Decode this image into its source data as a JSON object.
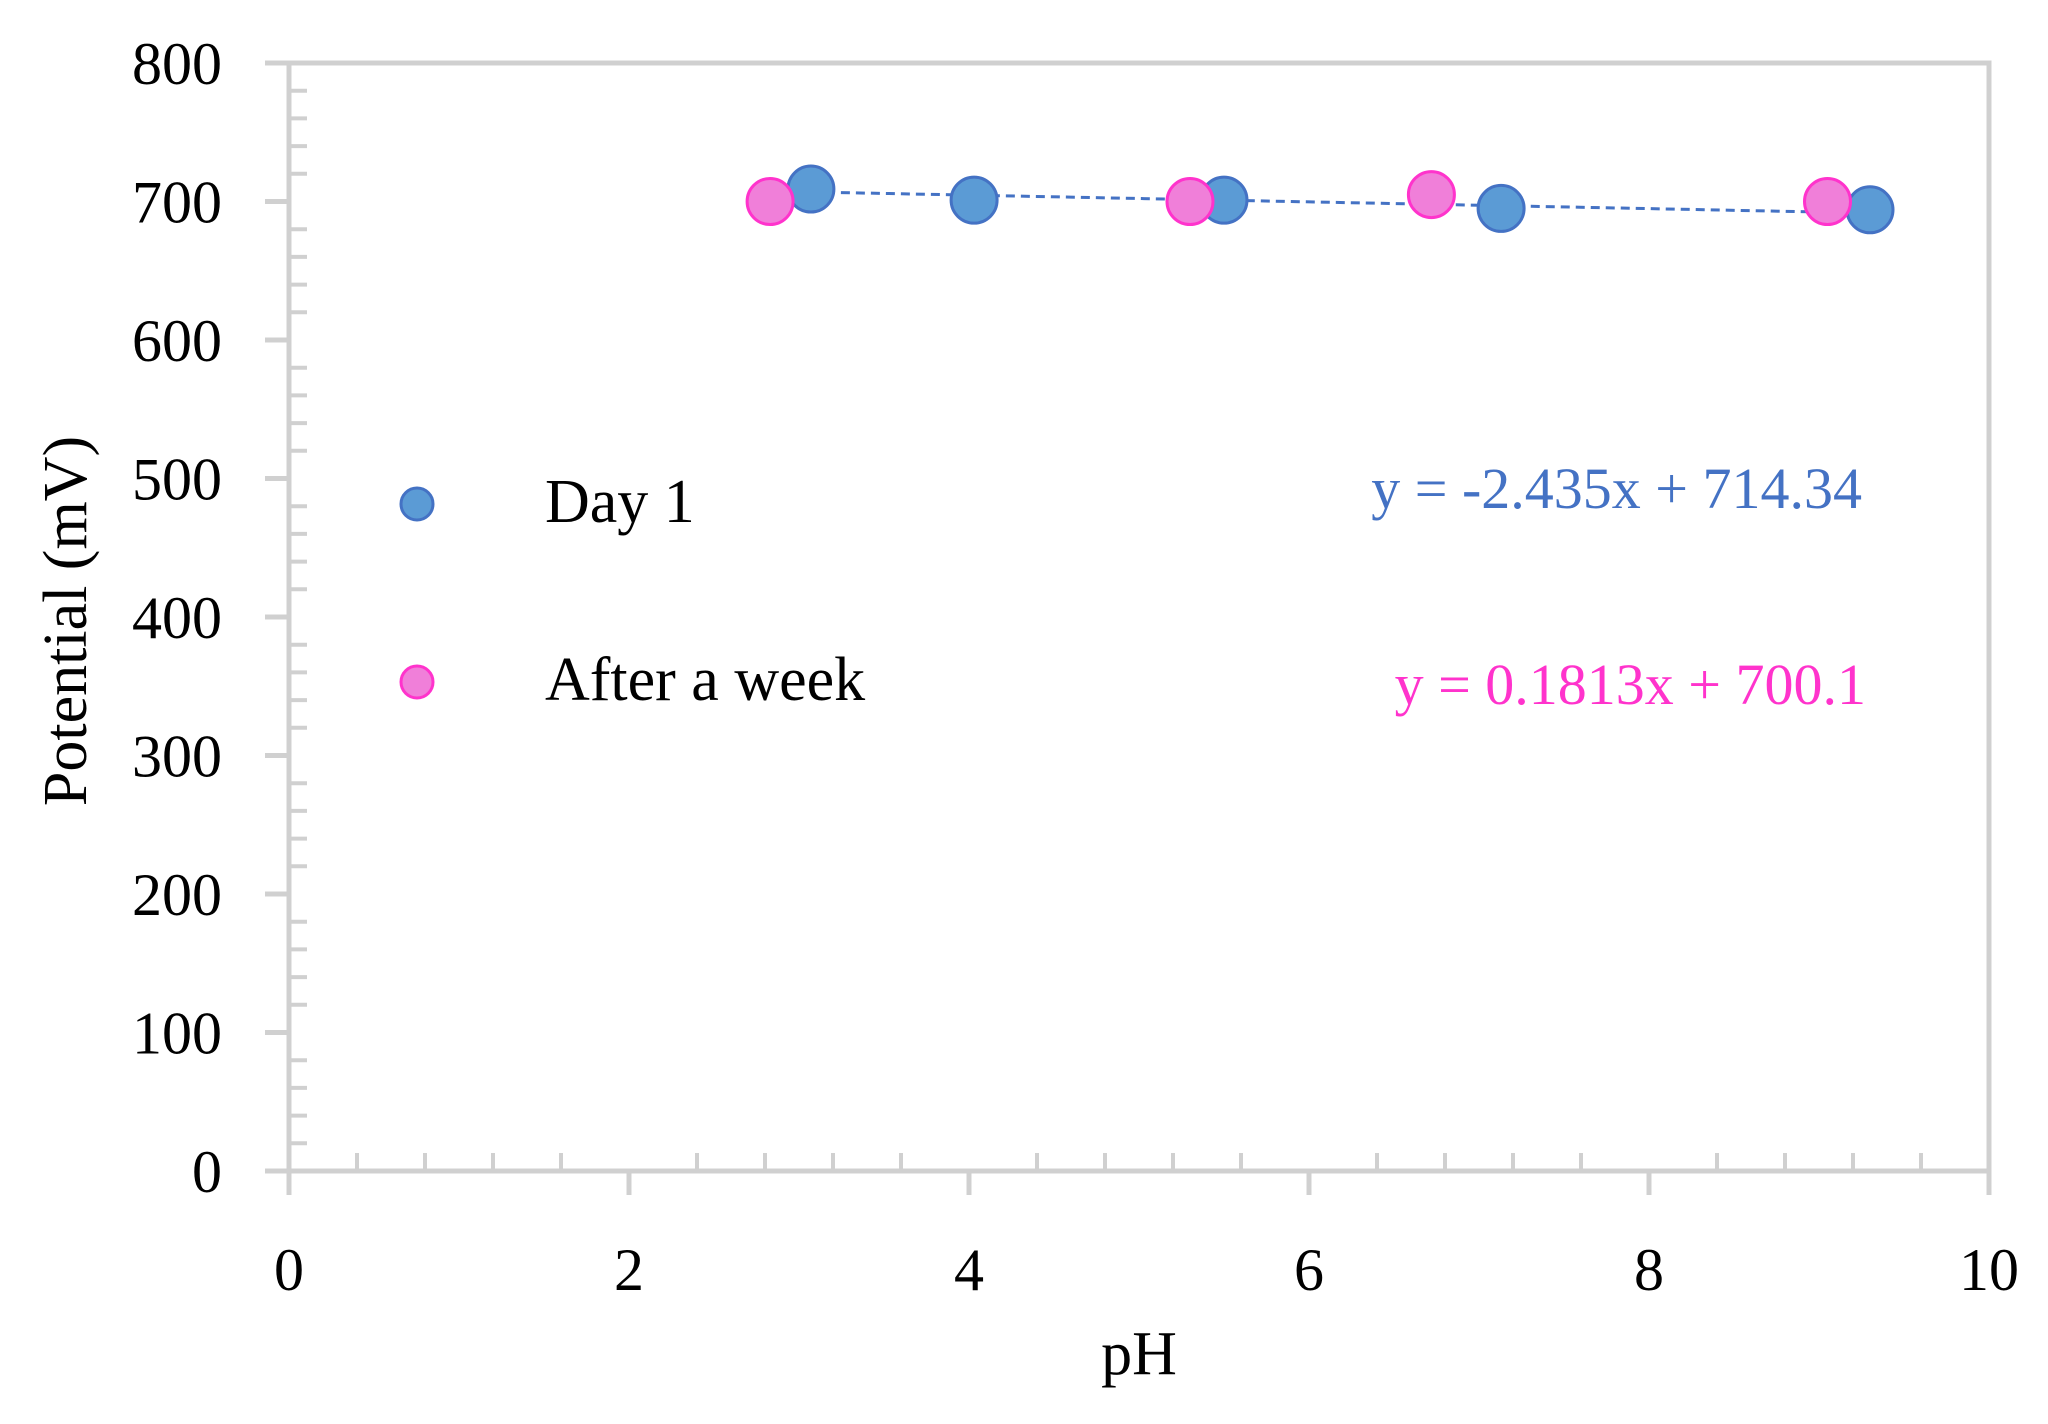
{
  "chart_data": {
    "type": "scatter",
    "xlabel": "pH",
    "ylabel": "Potential (mV)",
    "xlim": [
      0,
      10
    ],
    "ylim": [
      0,
      800
    ],
    "x_ticks": [
      "0",
      "2",
      "4",
      "6",
      "8",
      "10"
    ],
    "y_ticks": [
      "0",
      "100",
      "200",
      "300",
      "400",
      "500",
      "600",
      "700",
      "800"
    ],
    "legend_position": "center-left",
    "series": [
      {
        "name": "Day 1",
        "color": "#5b9bd5",
        "stroke": "#4472c4",
        "x": [
          3.07,
          4.03,
          5.5,
          7.13,
          9.3
        ],
        "y": [
          709,
          701,
          701,
          695,
          694
        ],
        "trendline": {
          "slope": -2.435,
          "intercept": 714.34,
          "x_range": [
            3.07,
            9.3
          ]
        },
        "equation": "y = -2.435x + 714.34",
        "equation_color": "#4472c4"
      },
      {
        "name": "After a week",
        "color": "#f07fd9",
        "stroke": "#ff33cc",
        "x": [
          2.83,
          5.3,
          6.72,
          9.05
        ],
        "y": [
          700,
          700,
          705,
          700
        ],
        "trendline": {
          "slope": 0.1813,
          "intercept": 700.1,
          "x_range": [
            2.83,
            9.05
          ]
        },
        "equation": "y = 0.1813x + 700.1",
        "equation_color": "#ff33cc"
      }
    ]
  }
}
